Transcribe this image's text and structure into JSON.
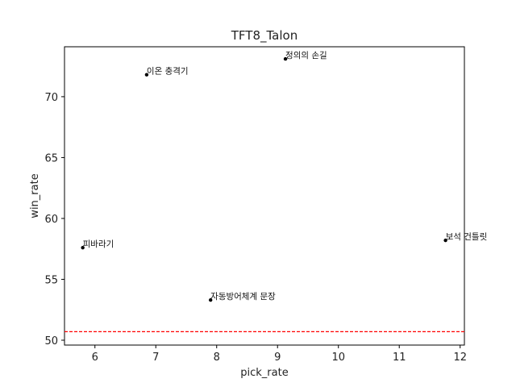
{
  "chart_data": {
    "type": "scatter",
    "title": "TFT8_Talon",
    "xlabel": "pick_rate",
    "ylabel": "win_rate",
    "xlim": [
      5.5,
      12.07
    ],
    "ylim": [
      49.6,
      74.1
    ],
    "xticks": [
      6,
      7,
      8,
      9,
      10,
      11,
      12
    ],
    "yticks": [
      50,
      55,
      60,
      65,
      70
    ],
    "grid": false,
    "points": [
      {
        "label": "정의의 손길",
        "x": 9.13,
        "y": 73.1
      },
      {
        "label": "이온 충격기",
        "x": 6.85,
        "y": 71.8
      },
      {
        "label": "보석 건틀릿",
        "x": 11.76,
        "y": 58.2
      },
      {
        "label": "피바라기",
        "x": 5.8,
        "y": 57.6
      },
      {
        "label": "자동방어체계 문장",
        "x": 7.9,
        "y": 53.3
      }
    ],
    "reference_line": {
      "orientation": "horizontal",
      "y": 50.7,
      "style": "dashed",
      "color": "#ff0000"
    },
    "marker_color": "#000000"
  }
}
